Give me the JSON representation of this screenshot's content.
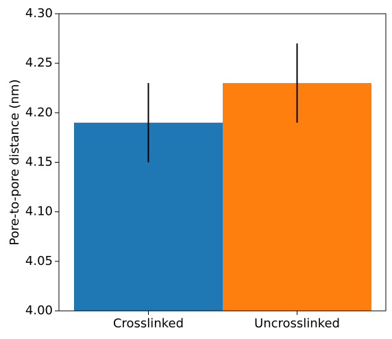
{
  "chart_data": {
    "type": "bar",
    "categories": [
      "Crosslinked",
      "Uncrosslinked"
    ],
    "values": [
      4.19,
      4.23
    ],
    "errors": [
      0.04,
      0.04
    ],
    "colors": [
      "#1f77b4",
      "#ff7f0e"
    ],
    "error_color": "#000000",
    "xlabel": "",
    "ylabel": "Pore-to-pore distance (nm)",
    "ylim": [
      4.0,
      4.3
    ],
    "yticks": [
      "4.00",
      "4.05",
      "4.10",
      "4.15",
      "4.20",
      "4.25",
      "4.30"
    ],
    "grid": false,
    "legend": "none"
  }
}
